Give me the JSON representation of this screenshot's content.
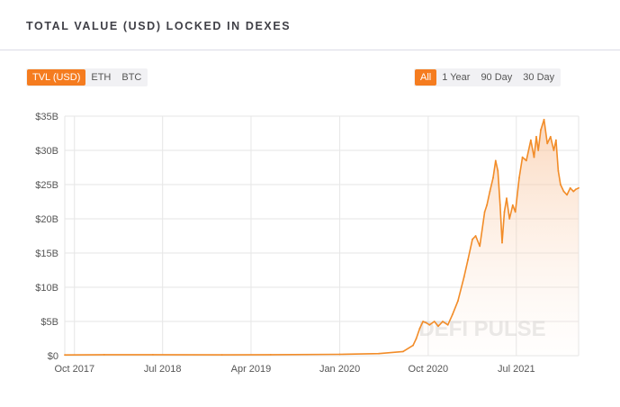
{
  "header": {
    "title": "TOTAL VALUE (USD) LOCKED IN DEXES"
  },
  "controls": {
    "metric": [
      {
        "label": "TVL (USD)",
        "active": true
      },
      {
        "label": "ETH",
        "active": false
      },
      {
        "label": "BTC",
        "active": false
      }
    ],
    "range": [
      {
        "label": "All",
        "active": true
      },
      {
        "label": "1 Year",
        "active": false
      },
      {
        "label": "90 Day",
        "active": false
      },
      {
        "label": "30 Day",
        "active": false
      }
    ]
  },
  "colors": {
    "accent": "#f57c1f",
    "line": "#f28c28",
    "grid": "#e6e6e6",
    "axis_text": "#555555"
  },
  "watermark": "DEFI PULSE",
  "chart_data": {
    "type": "area",
    "title": "TOTAL VALUE (USD) LOCKED IN DEXES",
    "xlabel": "",
    "ylabel": "",
    "ylim": [
      0,
      35
    ],
    "yunit": "B",
    "xlim": [
      "2017-09-01",
      "2022-01-10"
    ],
    "y_ticks": [
      "$0",
      "$5B",
      "$10B",
      "$15B",
      "$20B",
      "$25B",
      "$30B",
      "$35B"
    ],
    "x_ticks": [
      {
        "label": "Oct 2017",
        "date": "2017-10-01"
      },
      {
        "label": "Jul 2018",
        "date": "2018-07-01"
      },
      {
        "label": "Apr 2019",
        "date": "2019-04-01"
      },
      {
        "label": "Jan 2020",
        "date": "2020-01-01"
      },
      {
        "label": "Oct 2020",
        "date": "2020-10-01"
      },
      {
        "label": "Jul 2021",
        "date": "2021-07-01"
      }
    ],
    "grid": true,
    "series": [
      {
        "name": "",
        "x": [
          "2017-09-01",
          "2018-01-01",
          "2018-06-01",
          "2019-01-01",
          "2019-06-01",
          "2020-01-01",
          "2020-05-01",
          "2020-07-15",
          "2020-08-15",
          "2020-08-25",
          "2020-09-05",
          "2020-09-15",
          "2020-09-25",
          "2020-10-05",
          "2020-10-20",
          "2020-11-01",
          "2020-11-15",
          "2020-12-01",
          "2020-12-15",
          "2021-01-01",
          "2021-01-20",
          "2021-02-01",
          "2021-02-15",
          "2021-02-25",
          "2021-03-10",
          "2021-03-25",
          "2021-04-01",
          "2021-04-10",
          "2021-04-20",
          "2021-04-28",
          "2021-05-05",
          "2021-05-12",
          "2021-05-18",
          "2021-05-25",
          "2021-06-01",
          "2021-06-10",
          "2021-06-20",
          "2021-06-28",
          "2021-07-10",
          "2021-07-20",
          "2021-08-01",
          "2021-08-15",
          "2021-08-25",
          "2021-09-01",
          "2021-09-07",
          "2021-09-15",
          "2021-09-25",
          "2021-10-05",
          "2021-10-15",
          "2021-10-25",
          "2021-11-01",
          "2021-11-08",
          "2021-11-15",
          "2021-11-25",
          "2021-12-05",
          "2021-12-15",
          "2021-12-25",
          "2022-01-01",
          "2022-01-10"
        ],
        "values": [
          0.1,
          0.15,
          0.15,
          0.12,
          0.15,
          0.2,
          0.3,
          0.6,
          1.5,
          2.5,
          4.0,
          5.0,
          4.8,
          4.5,
          5.0,
          4.3,
          5.0,
          4.5,
          6.0,
          8.0,
          11.5,
          14.0,
          17.0,
          17.5,
          16.0,
          21.0,
          22.0,
          24.0,
          26.0,
          28.5,
          27.0,
          22.0,
          16.5,
          21.0,
          23.0,
          20.0,
          22.0,
          21.0,
          26.0,
          29.0,
          28.5,
          31.5,
          29.0,
          32.0,
          30.0,
          33.0,
          34.5,
          31.0,
          32.0,
          30.0,
          31.5,
          27.0,
          25.0,
          24.0,
          23.5,
          24.5,
          24.0,
          24.3,
          24.5
        ]
      }
    ]
  }
}
